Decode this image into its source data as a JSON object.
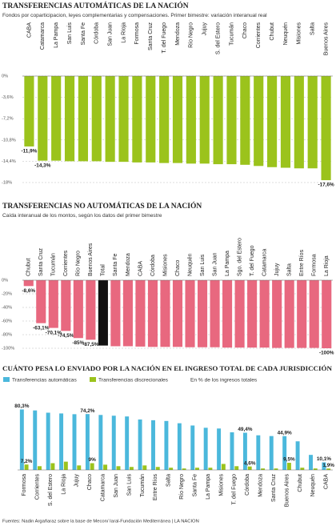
{
  "chart_data": [
    {
      "type": "bar",
      "title": "TRANSFERENCIAS AUTOMÁTICAS DE LA NACIÓN",
      "subtitle": "Fondos por coparticipacion, leyes complementarias y compensaciones. Primer bimestre: variación interanual real",
      "categories": [
        "CABA",
        "Catamarca",
        "La Pampa",
        "San Luis",
        "Santa Fe",
        "Córdoba",
        "San Juan",
        "La Rioja",
        "Formosa",
        "Santa Cruz",
        "T. del Fuego",
        "Mendoza",
        "Río Negro",
        "Jujuy",
        "S. del Estero",
        "Tucumán",
        "Chaco",
        "Corrientes",
        "Chubut",
        "Neuquén",
        "Misiones",
        "Salta",
        "Buenos Aires"
      ],
      "values": [
        -11.9,
        -14.3,
        -14.3,
        -14.4,
        -14.4,
        -14.4,
        -14.5,
        -14.5,
        -14.6,
        -14.6,
        -14.7,
        -14.7,
        -14.8,
        -14.8,
        -14.9,
        -14.9,
        -15.0,
        -15.2,
        -15.4,
        -15.5,
        -15.6,
        -15.6,
        -17.6
      ],
      "value_labels": [
        "-11,9%",
        "-14,3%",
        null,
        null,
        null,
        null,
        null,
        null,
        null,
        null,
        null,
        null,
        null,
        null,
        null,
        null,
        null,
        null,
        null,
        null,
        null,
        null,
        "-17,6%"
      ],
      "color": "#9bc31c",
      "ylim": [
        -18,
        0
      ],
      "yticks": [
        {
          "value": 0,
          "label": "0%"
        },
        {
          "value": -3.6,
          "label": "-3,6%"
        },
        {
          "value": -7.2,
          "label": "-7,2%"
        },
        {
          "value": -10.8,
          "label": "-10,8%"
        },
        {
          "value": -14.4,
          "label": "-14,4%"
        },
        {
          "value": -18,
          "label": "-18%"
        }
      ],
      "grid": true
    },
    {
      "type": "bar",
      "title": "TRANSFERENCIAS NO AUTOMÁTICAS DE LA NACIÓN",
      "subtitle": "Caída interanual de los montos, según los datos del primer bimestre",
      "categories": [
        "Chubut",
        "Santa Cruz",
        "Tucumán",
        "Corrientes",
        "Río Negro",
        "Buenos Aires",
        "Total",
        "Santa Fe",
        "Mendoza",
        "CABA",
        "Córdoba",
        "Misiones",
        "Chaco",
        "Neuquén",
        "San Luis",
        "San Juan",
        "La Pampa",
        "Sgo. del Estero",
        "T. del Fuego",
        "Catamarca",
        "Jujuy",
        "Salta",
        "Entre Ríos",
        "Formosa",
        "La Rioja"
      ],
      "values": [
        -8.6,
        -63.1,
        -70.1,
        -74.5,
        -85,
        -87.5,
        -96,
        -97,
        -97,
        -97.5,
        -98,
        -98,
        -98,
        -98.5,
        -98.5,
        -98.5,
        -99,
        -99,
        -99,
        -99,
        -99.5,
        -99.5,
        -99.5,
        -99.5,
        -100
      ],
      "value_labels": [
        "-8,6%",
        "-63,1%",
        "-70,1%",
        "-74,5%",
        "-85%",
        "-87,5%",
        null,
        null,
        null,
        null,
        null,
        null,
        null,
        null,
        null,
        null,
        null,
        null,
        null,
        null,
        null,
        null,
        null,
        null,
        "-100%"
      ],
      "colors": [
        "#e8687f",
        "#e8687f",
        "#e8687f",
        "#e8687f",
        "#e8687f",
        "#e8687f",
        "#111111",
        "#e8687f",
        "#e8687f",
        "#e8687f",
        "#e8687f",
        "#e8687f",
        "#e8687f",
        "#e8687f",
        "#e8687f",
        "#e8687f",
        "#e8687f",
        "#e8687f",
        "#e8687f",
        "#e8687f",
        "#e8687f",
        "#e8687f",
        "#e8687f",
        "#e8687f",
        "#e8687f"
      ],
      "ylim": [
        -100,
        0
      ],
      "yticks": [
        {
          "value": 0,
          "label": "0%"
        },
        {
          "value": -20,
          "label": "-20%"
        },
        {
          "value": -40,
          "label": "-40%"
        },
        {
          "value": -60,
          "label": "-60%"
        },
        {
          "value": -80,
          "label": "-80%"
        },
        {
          "value": -100,
          "label": "-100%"
        }
      ],
      "grid": true
    },
    {
      "type": "bar",
      "title": "CUÁNTO PESA LO ENVIADO POR LA NACIÓN EN EL INGRESO TOTAL DE CADA JURISDICCIÓN",
      "subtitle": "En % de los ingresos totales",
      "categories": [
        "Formosa",
        "Corrientes",
        "S. del Estero",
        "La Rioja",
        "Jujuy",
        "Chaco",
        "Catamarca",
        "San Juan",
        "San Luis",
        "Tucumán",
        "Entre Ríos",
        "Salta",
        "Río Negro",
        "Santa Fe",
        "La Pampa",
        "Misiones",
        "T. del Fuego",
        "Córdoba",
        "Mendoza",
        "Santa Cruz",
        "Buenos Aires",
        "Chubut",
        "Neuquén",
        "CABA"
      ],
      "series": [
        {
          "name": "Transferencias automáticas",
          "color": "#4bb8dc",
          "values": [
            80.3,
            79,
            76,
            75,
            74,
            74.2,
            73,
            72,
            71,
            67,
            66,
            65,
            62,
            59,
            56,
            55,
            50,
            49.4,
            46,
            45,
            44.9,
            38,
            20,
            10.1
          ],
          "value_labels": [
            "80,3%",
            null,
            null,
            null,
            null,
            "74,2%",
            null,
            null,
            null,
            null,
            null,
            null,
            null,
            null,
            null,
            null,
            null,
            "49,4%",
            null,
            null,
            "44,9%",
            null,
            null,
            "10,1%"
          ]
        },
        {
          "name": "Transferencias discrecionales",
          "color": "#9bc31c",
          "values": [
            7.2,
            5,
            9,
            11,
            6,
            9,
            7,
            5,
            4,
            6,
            4,
            3,
            2,
            3,
            3,
            8,
            5,
            4.6,
            2,
            2,
            9.5,
            3,
            2,
            1.9
          ],
          "value_labels": [
            "7,2%",
            null,
            null,
            null,
            null,
            "9%",
            null,
            null,
            null,
            null,
            null,
            null,
            null,
            null,
            null,
            null,
            null,
            "4,6%",
            null,
            null,
            "9,5%",
            null,
            null,
            "1,9%"
          ]
        }
      ],
      "ylim": [
        0,
        85
      ],
      "yticks": [],
      "grid": false
    }
  ],
  "source": "Fuentes: Nadin Argañaraz sobre la base de Mecon/ Iaral-Fundación Mediterránea | LA NACION"
}
